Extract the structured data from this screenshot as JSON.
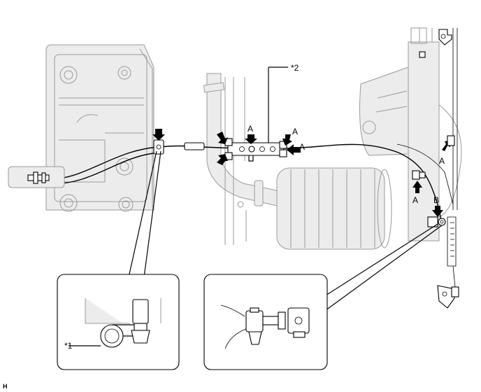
{
  "labels": {
    "callout_1": "*1",
    "callout_2": "*2",
    "point_a": "A",
    "point_b": "B"
  },
  "image_code": "H"
}
